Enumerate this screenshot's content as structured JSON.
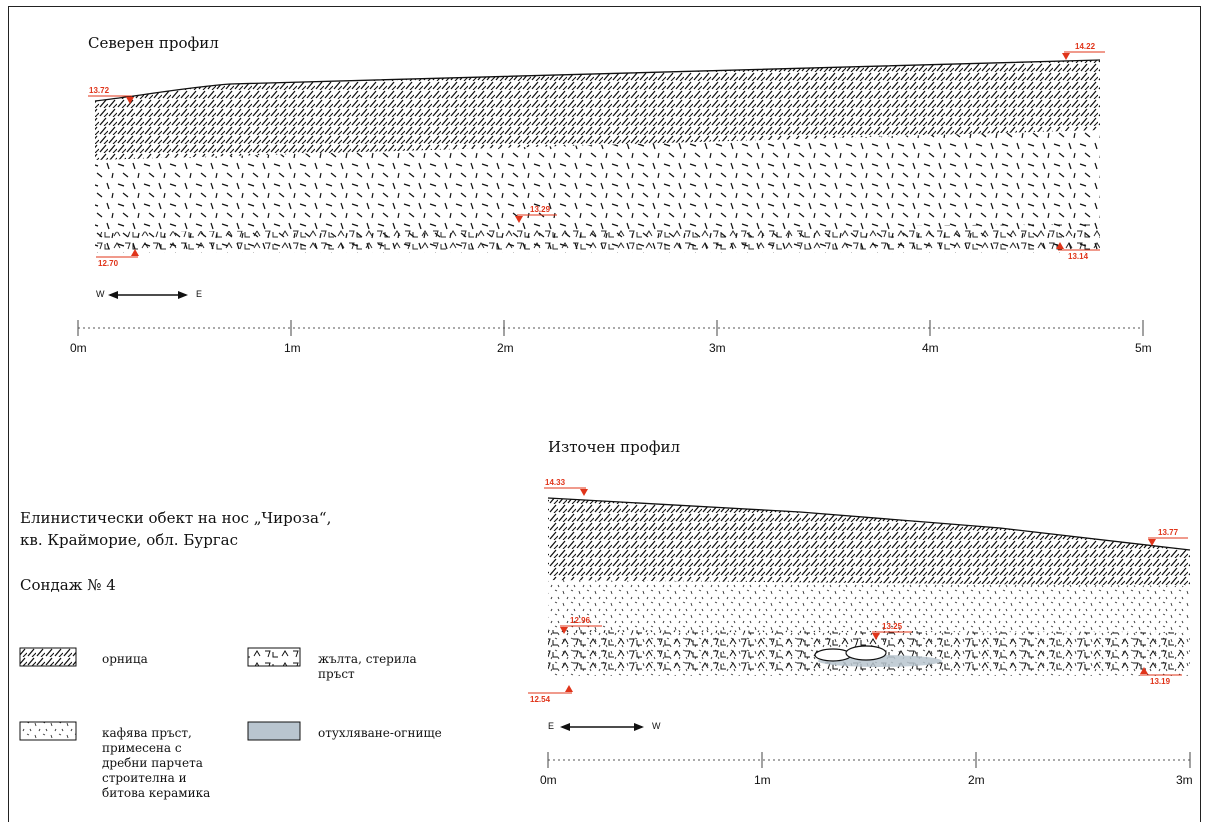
{
  "north_profile": {
    "title": "Северен профил",
    "elevations": [
      "13.72",
      "14.22",
      "13.29",
      "12.70",
      "13.14"
    ],
    "direction": {
      "left": "W",
      "right": "E"
    },
    "scale_labels": [
      "0m",
      "1m",
      "2m",
      "3m",
      "4m",
      "5m"
    ]
  },
  "east_profile": {
    "title": "Източен профил",
    "elevations": [
      "14.33",
      "13.77",
      "12.96",
      "13.25",
      "12.54",
      "13.19"
    ],
    "direction": {
      "left": "E",
      "right": "W"
    },
    "scale_labels": [
      "0m",
      "1m",
      "2m",
      "3m"
    ]
  },
  "site": {
    "line1": "Елинистически обект на нос „Чироза“,",
    "line2": "кв. Крайморие, обл. Бургас",
    "sondage": "Сондаж № 4"
  },
  "legend": [
    {
      "key": "ornitsa",
      "label": "орница"
    },
    {
      "key": "yellow",
      "label": "жълта, стерила пръст"
    },
    {
      "key": "brown",
      "label": "кафява пръст, примесена с дребни парчета строителна и битова керамика"
    },
    {
      "key": "burnt",
      "label": "отухляване-огнище"
    }
  ],
  "colors": {
    "elevation_marker": "#e0341a",
    "burnt_fill": "#b9c5cf",
    "line": "#111111"
  }
}
